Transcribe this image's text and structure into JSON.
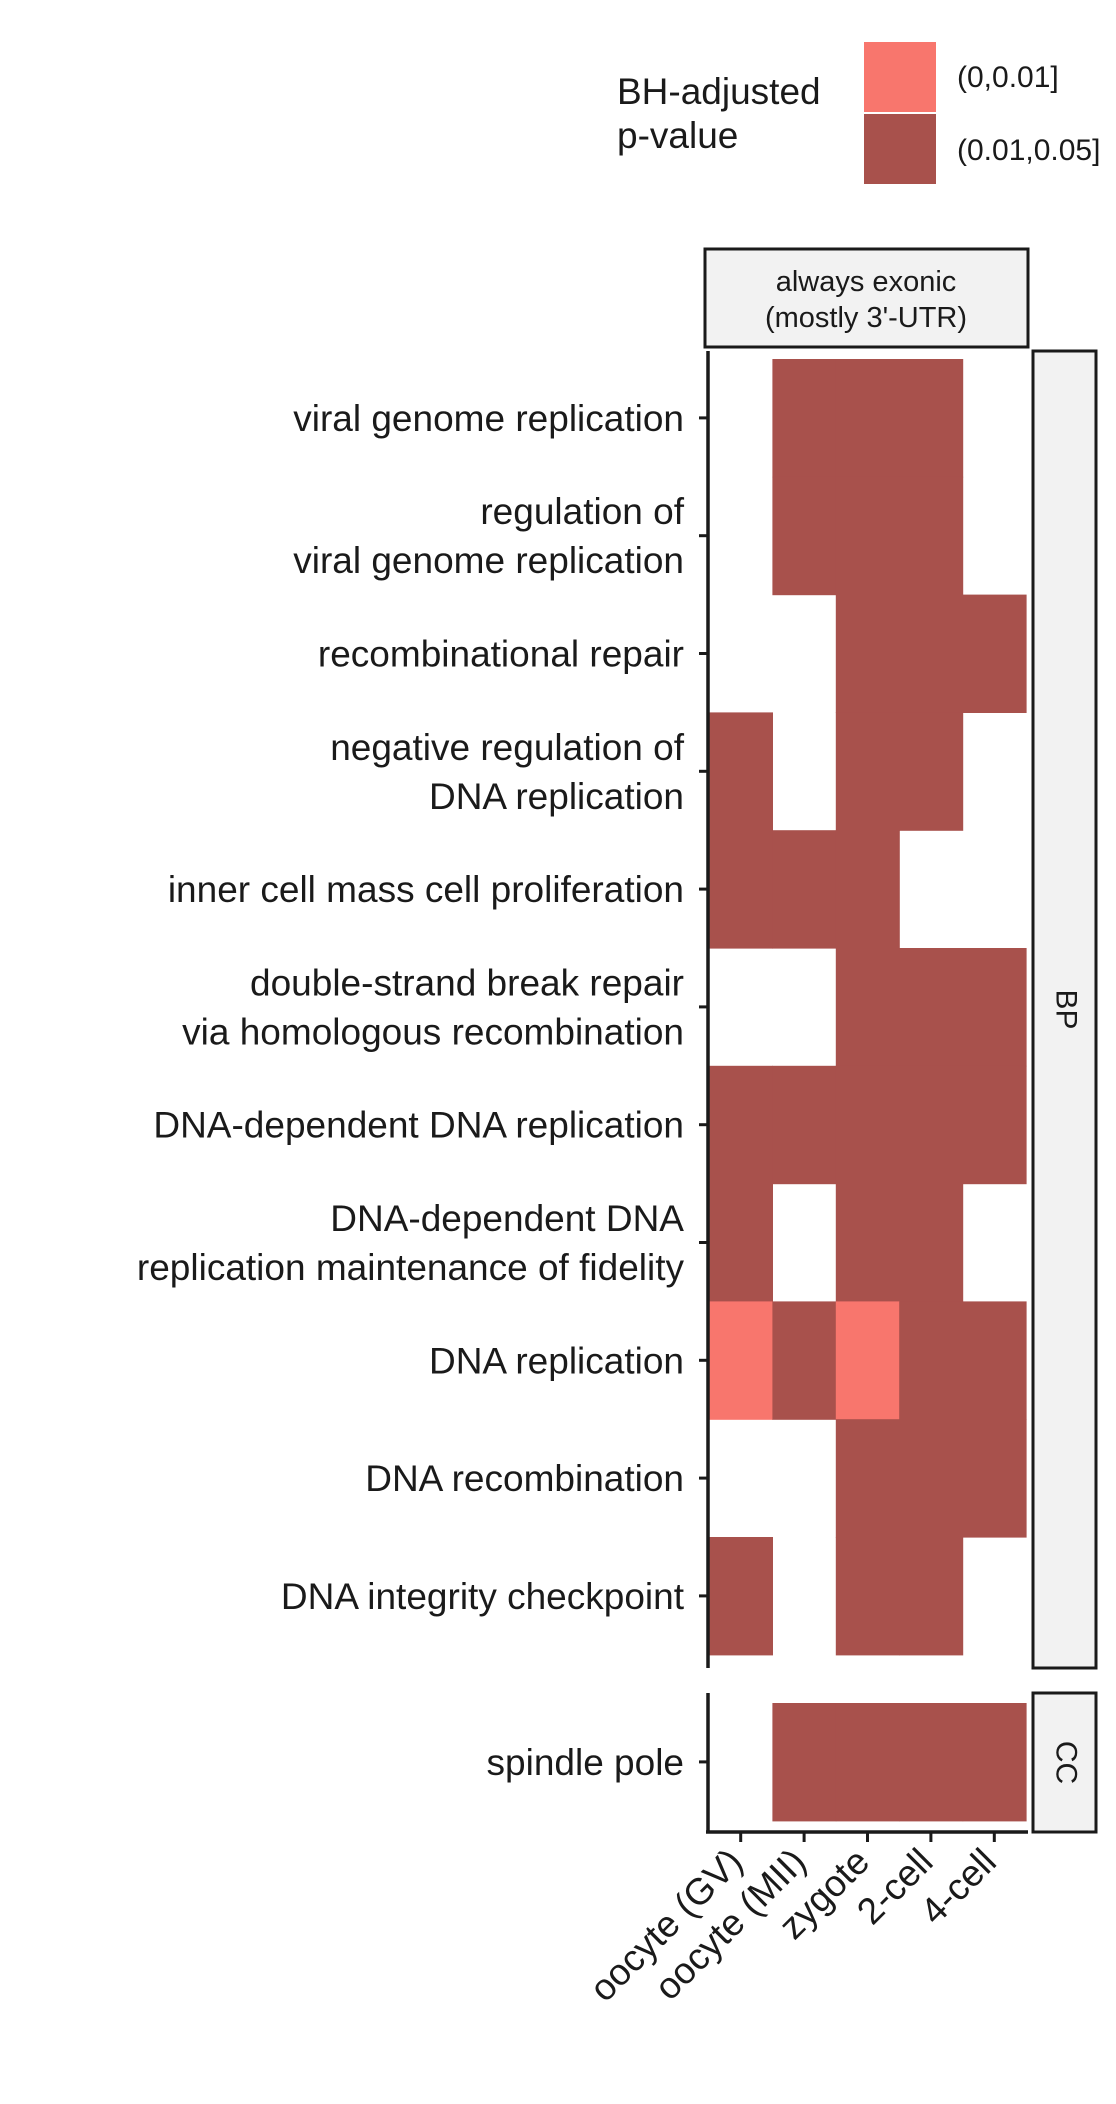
{
  "chart_data": {
    "type": "heatmap",
    "legend": {
      "title_lines": [
        "BH-adjusted",
        "p-value"
      ],
      "entries": [
        {
          "label": "(0,0.01]",
          "color": "#F8766D"
        },
        {
          "label": "(0.01,0.05]",
          "color": "#A8514C"
        }
      ],
      "placement": "top-right"
    },
    "facet_column": {
      "label_lines": [
        "always exonic",
        "(mostly 3'-UTR)"
      ]
    },
    "x_categories": [
      "oocyte (GV)",
      "oocyte (MII)",
      "zygote",
      "2-cell",
      "4-cell"
    ],
    "panels": [
      {
        "label": "BP",
        "rows": [
          {
            "label_lines": [
              "viral genome replication"
            ],
            "values": [
              null,
              "(0.01,0.05]",
              "(0.01,0.05]",
              "(0.01,0.05]",
              null
            ]
          },
          {
            "label_lines": [
              "regulation of",
              "viral genome replication"
            ],
            "values": [
              null,
              "(0.01,0.05]",
              "(0.01,0.05]",
              "(0.01,0.05]",
              null
            ]
          },
          {
            "label_lines": [
              "recombinational repair"
            ],
            "values": [
              null,
              null,
              "(0.01,0.05]",
              "(0.01,0.05]",
              "(0.01,0.05]"
            ]
          },
          {
            "label_lines": [
              "negative regulation of",
              "DNA replication"
            ],
            "values": [
              "(0.01,0.05]",
              null,
              "(0.01,0.05]",
              "(0.01,0.05]",
              null
            ]
          },
          {
            "label_lines": [
              "inner cell mass cell proliferation"
            ],
            "values": [
              "(0.01,0.05]",
              "(0.01,0.05]",
              "(0.01,0.05]",
              null,
              null
            ]
          },
          {
            "label_lines": [
              "double-strand break repair",
              "via homologous recombination"
            ],
            "values": [
              null,
              null,
              "(0.01,0.05]",
              "(0.01,0.05]",
              "(0.01,0.05]"
            ]
          },
          {
            "label_lines": [
              "DNA-dependent DNA replication"
            ],
            "values": [
              "(0.01,0.05]",
              "(0.01,0.05]",
              "(0.01,0.05]",
              "(0.01,0.05]",
              "(0.01,0.05]"
            ]
          },
          {
            "label_lines": [
              "DNA-dependent DNA",
              "replication maintenance of fidelity"
            ],
            "values": [
              "(0.01,0.05]",
              null,
              "(0.01,0.05]",
              "(0.01,0.05]",
              null
            ]
          },
          {
            "label_lines": [
              "DNA replication"
            ],
            "values": [
              "(0,0.01]",
              "(0.01,0.05]",
              "(0,0.01]",
              "(0.01,0.05]",
              "(0.01,0.05]"
            ]
          },
          {
            "label_lines": [
              "DNA recombination"
            ],
            "values": [
              null,
              null,
              "(0.01,0.05]",
              "(0.01,0.05]",
              "(0.01,0.05]"
            ]
          },
          {
            "label_lines": [
              "DNA integrity checkpoint"
            ],
            "values": [
              "(0.01,0.05]",
              null,
              "(0.01,0.05]",
              "(0.01,0.05]",
              null
            ]
          }
        ]
      },
      {
        "label": "CC",
        "rows": [
          {
            "label_lines": [
              "spindle pole"
            ],
            "values": [
              null,
              "(0.01,0.05]",
              "(0.01,0.05]",
              "(0.01,0.05]",
              "(0.01,0.05]"
            ]
          }
        ]
      }
    ]
  }
}
